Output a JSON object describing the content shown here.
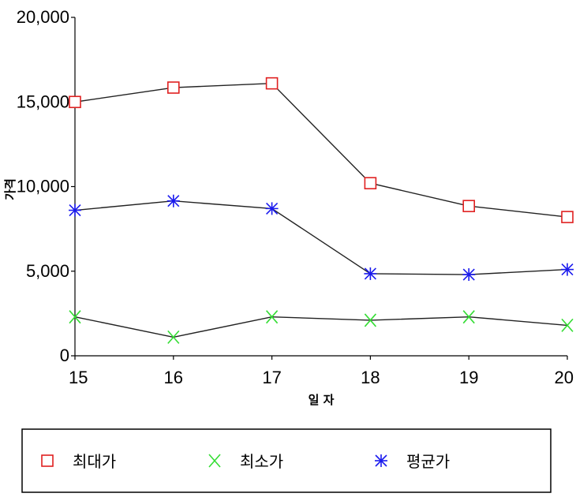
{
  "chart_data": {
    "type": "line",
    "x": [
      15,
      16,
      17,
      18,
      19,
      20
    ],
    "xlabel": "일 자",
    "ylabel": "가격",
    "ylim": [
      0,
      20000
    ],
    "y_ticks": [
      "0",
      "5,000",
      "10,000",
      "15,000",
      "20,000"
    ],
    "x_ticks": [
      "15",
      "16",
      "17",
      "18",
      "19",
      "20"
    ],
    "series": [
      {
        "name": "최대가",
        "values": [
          15000,
          15850,
          16100,
          10200,
          8850,
          8200
        ],
        "color": "#e02020",
        "marker": "square"
      },
      {
        "name": "최소가",
        "values": [
          2300,
          1100,
          2300,
          2100,
          2300,
          1800
        ],
        "color": "#33dd33",
        "marker": "x"
      },
      {
        "name": "평균가",
        "values": [
          8600,
          9150,
          8700,
          4850,
          4800,
          5100
        ],
        "color": "#1a1aee",
        "marker": "asterisk"
      }
    ],
    "grid": false,
    "legend_position": "bottom"
  }
}
